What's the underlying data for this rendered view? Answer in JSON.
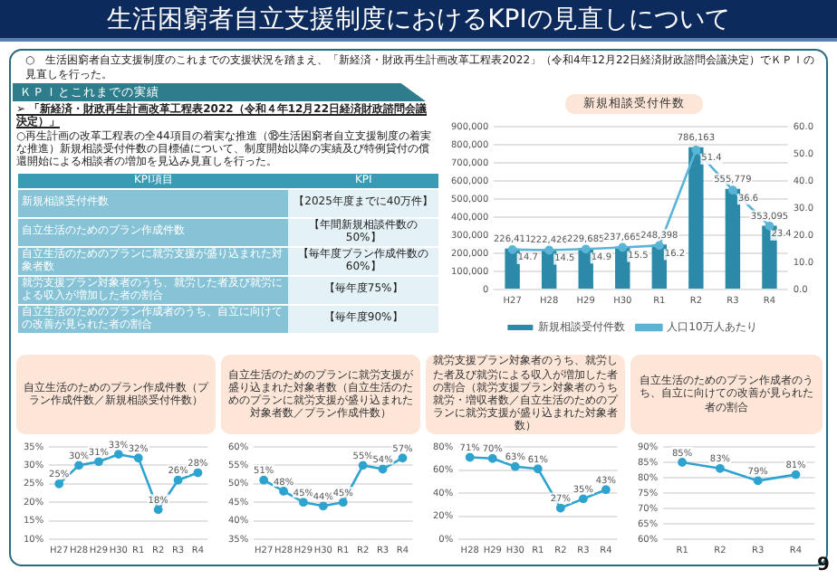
{
  "chart_data": [
    {
      "type": "other",
      "title": "生活困窮者自立支援制度におけるKPIの見直しについて",
      "annotations": [
        "○　生活困窮者自立支援制度のこれまでの支援状況を踏まえ、「新経済・財政再生計画改革工程表2022」（令和4年12月22日経済財政諮問会議決定）でＫＰＩの見直しを行った。",
        "ＫＰＩとこれまでの実績",
        "➢ 「新経済・財政再生計画改革工程表2022（令和４年12月22日経済財政諮問会議決定）」",
        "○再生計画の改革工程表の全44項目の着実な推進（⑱生活困窮者自立支援制度の着実な推進）新規相談受付件数の目標値について、制度開始以降の実績及び特例貸付の償還開始による相談者の増加を見込み見直しを行った。",
        "KPI項目",
        "KPI",
        "新規相談受付件数",
        "【2025年度までに40万件】",
        "自立生活のためのプラン作成件数",
        "【年間新規相談件数の50%】",
        "自立生活のためのプランに就労支援が盛り込まれた対象者数",
        "【毎年度プラン作成件数の60%】",
        "就労支援プラン対象者のうち、就労した者及び就労による収入が増加した者の割合",
        "【毎年度75%】",
        "自立生活のためのプラン作成者のうち、自立に向けての改善が見られた者の割合",
        "【毎年度90%】",
        "9"
      ]
    },
    {
      "type": "bar",
      "title": "新規相談受付件数",
      "categories": [
        "H27",
        "H28",
        "H29",
        "H30",
        "R1",
        "R2",
        "R3",
        "R4"
      ],
      "series": [
        {
          "name": "新規相談受付件数",
          "type": "bar",
          "color": "#2b8aa8",
          "values": [
            226411,
            222426,
            229685,
            237665,
            248398,
            786163,
            555779,
            353095
          ],
          "value_labels": [
            "226,411",
            "222,426",
            "229,685",
            "237,665",
            "248,398",
            "786,163",
            "555,779",
            "353,095"
          ]
        },
        {
          "name": "人口10万人あたり",
          "type": "line",
          "axis": "y2",
          "color": "#5ab4d6",
          "values": [
            14.7,
            14.5,
            14.9,
            15.5,
            16.2,
            51.4,
            36.6,
            23.4
          ],
          "value_labels": [
            "14.7",
            "14.5",
            "14.9",
            "15.5",
            "16.2",
            "51.4",
            "36.6",
            "23.4"
          ]
        }
      ],
      "ylim": [
        0,
        900000
      ],
      "yticks": [
        0,
        {
          "value": 100000,
          "label": "100,000"
        },
        {
          "value": 200000,
          "label": "200,000"
        },
        {
          "value": 300000,
          "label": "300,000"
        },
        {
          "value": 400000,
          "label": "400,000"
        },
        {
          "value": 500000,
          "label": "500,000"
        },
        {
          "value": 600000,
          "label": "600,000"
        },
        {
          "value": 700000,
          "label": "700,000"
        },
        {
          "value": 800000,
          "label": "800,000"
        },
        {
          "value": 900000,
          "label": "900,000"
        }
      ],
      "y2lim": [
        0,
        60
      ],
      "y2ticks": [
        {
          "value": 0,
          "label": "0.0"
        },
        {
          "value": 10,
          "label": "10.0"
        },
        {
          "value": 20,
          "label": "20.0"
        },
        {
          "value": 30,
          "label": "30.0"
        },
        {
          "value": 40,
          "label": "40.0"
        },
        {
          "value": 50,
          "label": "50.0"
        },
        {
          "value": 60,
          "label": "60.0"
        }
      ],
      "legend": "bottom",
      "marker": "circle",
      "grid": "y"
    },
    {
      "type": "line",
      "title": "自立生活のためのプラン作成件数（プラン作成件数／新規相談受付件数）",
      "categories": [
        "H27",
        "H28",
        "H29",
        "H30",
        "R1",
        "R2",
        "R3",
        "R4"
      ],
      "color": "#2ea3cf",
      "values": [
        25,
        30,
        31,
        33,
        32,
        18,
        26,
        28
      ],
      "value_labels": [
        "25%",
        "30%",
        "31%",
        "33%",
        "32%",
        "18%",
        "26%",
        "28%"
      ],
      "ylim": [
        10,
        35
      ],
      "yticks": [
        {
          "value": 10,
          "label": "10%"
        },
        {
          "value": 15,
          "label": "15%"
        },
        {
          "value": 20,
          "label": "20%"
        },
        {
          "value": 25,
          "label": "25%"
        },
        {
          "value": 30,
          "label": "30%"
        },
        {
          "value": 35,
          "label": "35%"
        }
      ],
      "marker": "circle",
      "grid": "y"
    },
    {
      "type": "line",
      "title": "自立生活のためのプランに就労支援が盛り込まれた対象者数（自立生活のためのプランに就労支援が盛り込まれた対象者数／プラン作成件数）",
      "categories": [
        "H27",
        "H28",
        "H29",
        "H30",
        "R1",
        "R2",
        "R3",
        "R4"
      ],
      "color": "#2ea3cf",
      "values": [
        51,
        48,
        45,
        44,
        45,
        55,
        54,
        57
      ],
      "value_labels": [
        "51%",
        "48%",
        "45%",
        "44%",
        "45%",
        "55%",
        "54%",
        "57%"
      ],
      "ylim": [
        35,
        60
      ],
      "yticks": [
        {
          "value": 35,
          "label": "35%"
        },
        {
          "value": 40,
          "label": "40%"
        },
        {
          "value": 45,
          "label": "45%"
        },
        {
          "value": 50,
          "label": "50%"
        },
        {
          "value": 55,
          "label": "55%"
        },
        {
          "value": 60,
          "label": "60%"
        }
      ],
      "marker": "circle",
      "grid": "y"
    },
    {
      "type": "line",
      "title": "就労支援プラン対象者のうち、就労した者及び就労による収入が増加した者の割合（就労支援プラン対象者のうち就労・増収者数／自立生活のためのプランに就労支援が盛り込まれた対象者数）",
      "categories": [
        "H28",
        "H29",
        "H30",
        "R1",
        "R2",
        "R3",
        "R4"
      ],
      "color": "#2ea3cf",
      "values": [
        71,
        70,
        63,
        61,
        27,
        35,
        43
      ],
      "value_labels": [
        "71%",
        "70%",
        "63%",
        "61%",
        "27%",
        "35%",
        "43%"
      ],
      "ylim": [
        0,
        80
      ],
      "yticks": [
        {
          "value": 0,
          "label": "0%"
        },
        {
          "value": 20,
          "label": "20%"
        },
        {
          "value": 40,
          "label": "40%"
        },
        {
          "value": 60,
          "label": "60%"
        },
        {
          "value": 80,
          "label": "80%"
        }
      ],
      "marker": "circle",
      "grid": "y"
    },
    {
      "type": "line",
      "title": "自立生活のためのプラン作成者のうち、自立に向けての改善が見られた者の割合",
      "categories": [
        "R1",
        "R2",
        "R3",
        "R4"
      ],
      "color": "#2ea3cf",
      "values": [
        85,
        83,
        79,
        81
      ],
      "value_labels": [
        "85%",
        "83%",
        "79%",
        "81%"
      ],
      "ylim": [
        60,
        90
      ],
      "yticks": [
        {
          "value": 60,
          "label": "60%"
        },
        {
          "value": 65,
          "label": "65%"
        },
        {
          "value": 70,
          "label": "70%"
        },
        {
          "value": 75,
          "label": "75%"
        },
        {
          "value": 80,
          "label": "80%"
        },
        {
          "value": 85,
          "label": "85%"
        },
        {
          "value": 90,
          "label": "90%"
        }
      ],
      "marker": "circle",
      "grid": "y"
    }
  ]
}
